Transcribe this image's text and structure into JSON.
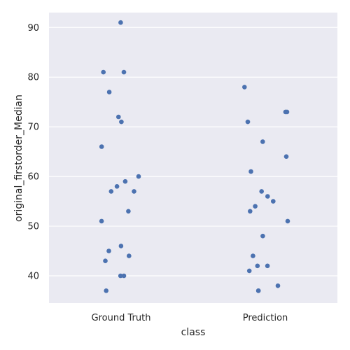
{
  "chart_data": {
    "type": "scatter",
    "style": "strip-plot",
    "xlabel": "class",
    "ylabel": "original_firstorder_Median",
    "categories": [
      "Ground Truth",
      "Prediction"
    ],
    "ylim": [
      34.5,
      93
    ],
    "yticks": [
      40,
      50,
      60,
      70,
      80,
      90
    ],
    "grid": true,
    "point_color": "#4c72b0",
    "background_color": "#eaeaf2",
    "series": [
      {
        "category": "Ground Truth",
        "values": [
          91,
          81,
          81,
          77,
          72,
          71,
          66,
          60,
          59,
          58,
          57,
          57,
          53,
          51,
          46,
          45,
          44,
          43,
          40,
          40,
          37
        ]
      },
      {
        "category": "Prediction",
        "values": [
          78,
          73,
          73,
          71,
          67,
          64,
          61,
          57,
          56,
          55,
          54,
          53,
          51,
          48,
          44,
          42,
          42,
          41,
          38,
          37,
          37
        ]
      }
    ]
  }
}
